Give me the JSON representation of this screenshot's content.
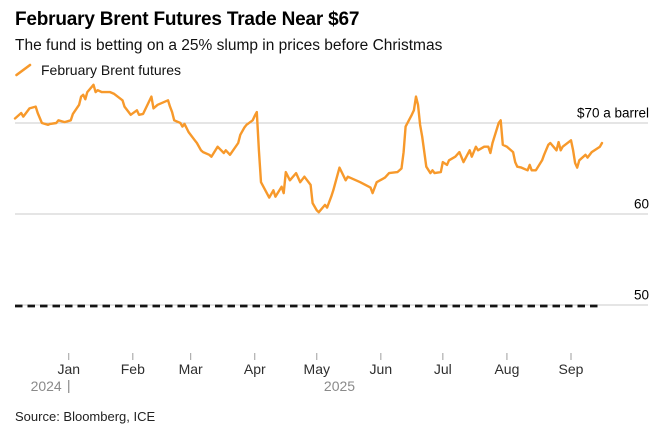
{
  "header": {
    "title": "February Brent Futures Trade Near $67",
    "subtitle": "The fund is betting on a 25% slump in prices before Christmas"
  },
  "legend": {
    "series_label": "February Brent futures"
  },
  "footer": {
    "source": "Source: Bloomberg, ICE"
  },
  "colors": {
    "line": "#F7992B",
    "grid": "#CBCBCB",
    "dashed_target": "#141414",
    "tick": "#9E9E9E",
    "month_label": "#2E2E2E",
    "year_label": "#8A8A8A",
    "axis_label": "#000000"
  },
  "chart_data": {
    "type": "line",
    "title": "February Brent Futures Trade Near $67",
    "subtitle": "The fund is betting on a 25% slump in prices before Christmas",
    "unit": "$ a barrel",
    "grid": "horizontal-only",
    "legend_position": "top-left",
    "x_range": {
      "start": "2024-12-06",
      "end": "2025-09-16"
    },
    "ylim": [
      48,
      76
    ],
    "y_ticks": [
      {
        "value": 70,
        "label": "$70 a barrel"
      },
      {
        "value": 60,
        "label": "60"
      },
      {
        "value": 50,
        "label": "50"
      }
    ],
    "x_ticks": [
      {
        "date": "2025-01-01",
        "label": "Jan"
      },
      {
        "date": "2025-02-01",
        "label": "Feb"
      },
      {
        "date": "2025-03-01",
        "label": "Mar"
      },
      {
        "date": "2025-04-01",
        "label": "Apr"
      },
      {
        "date": "2025-05-01",
        "label": "May"
      },
      {
        "date": "2025-06-01",
        "label": "Jun"
      },
      {
        "date": "2025-07-01",
        "label": "Jul"
      },
      {
        "date": "2025-08-01",
        "label": "Aug"
      },
      {
        "date": "2025-09-01",
        "label": "Sep"
      }
    ],
    "year_labels": [
      {
        "label": "2024",
        "type": "boundary",
        "date": "2025-01-01"
      },
      {
        "label": "2025",
        "type": "center",
        "date": "2025-05-12"
      }
    ],
    "target_line": {
      "value": 50,
      "style": "dashed"
    },
    "series": [
      {
        "name": "February Brent futures",
        "color": "#F7992B",
        "points": [
          [
            "2024-12-06",
            70.5
          ],
          [
            "2024-12-09",
            71.1
          ],
          [
            "2024-12-10",
            70.7
          ],
          [
            "2024-12-13",
            71.6
          ],
          [
            "2024-12-16",
            71.8
          ],
          [
            "2024-12-17",
            71.1
          ],
          [
            "2024-12-19",
            70.0
          ],
          [
            "2024-12-22",
            69.8
          ],
          [
            "2024-12-23",
            69.9
          ],
          [
            "2024-12-26",
            70.0
          ],
          [
            "2024-12-27",
            70.3
          ],
          [
            "2024-12-30",
            70.1
          ],
          [
            "2025-01-02",
            70.3
          ],
          [
            "2025-01-03",
            71.0
          ],
          [
            "2025-01-06",
            72.0
          ],
          [
            "2025-01-07",
            72.9
          ],
          [
            "2025-01-08",
            73.1
          ],
          [
            "2025-01-09",
            72.6
          ],
          [
            "2025-01-10",
            73.4
          ],
          [
            "2025-01-13",
            74.2
          ],
          [
            "2025-01-14",
            73.4
          ],
          [
            "2025-01-15",
            73.6
          ],
          [
            "2025-01-17",
            73.4
          ],
          [
            "2025-01-21",
            73.4
          ],
          [
            "2025-01-23",
            73.2
          ],
          [
            "2025-01-27",
            72.5
          ],
          [
            "2025-01-28",
            71.8
          ],
          [
            "2025-01-30",
            71.2
          ],
          [
            "2025-01-31",
            70.9
          ],
          [
            "2025-02-03",
            71.4
          ],
          [
            "2025-02-04",
            70.9
          ],
          [
            "2025-02-06",
            71.0
          ],
          [
            "2025-02-10",
            72.9
          ],
          [
            "2025-02-11",
            71.6
          ],
          [
            "2025-02-13",
            72.0
          ],
          [
            "2025-02-18",
            72.5
          ],
          [
            "2025-02-19",
            71.8
          ],
          [
            "2025-02-20",
            71.2
          ],
          [
            "2025-02-21",
            70.3
          ],
          [
            "2025-02-24",
            70.0
          ],
          [
            "2025-02-25",
            69.6
          ],
          [
            "2025-02-26",
            69.9
          ],
          [
            "2025-02-28",
            69.0
          ],
          [
            "2025-03-03",
            68.1
          ],
          [
            "2025-03-04",
            67.8
          ],
          [
            "2025-03-06",
            67.0
          ],
          [
            "2025-03-07",
            66.8
          ],
          [
            "2025-03-10",
            66.5
          ],
          [
            "2025-03-11",
            66.3
          ],
          [
            "2025-03-14",
            67.4
          ],
          [
            "2025-03-17",
            66.7
          ],
          [
            "2025-03-18",
            67.0
          ],
          [
            "2025-03-20",
            66.5
          ],
          [
            "2025-03-24",
            67.8
          ],
          [
            "2025-03-25",
            68.7
          ],
          [
            "2025-03-27",
            69.5
          ],
          [
            "2025-03-28",
            69.8
          ],
          [
            "2025-03-31",
            70.3
          ],
          [
            "2025-04-01",
            70.8
          ],
          [
            "2025-04-02",
            71.2
          ],
          [
            "2025-04-03",
            67.0
          ],
          [
            "2025-04-04",
            63.5
          ],
          [
            "2025-04-08",
            61.8
          ],
          [
            "2025-04-10",
            62.6
          ],
          [
            "2025-04-11",
            61.9
          ],
          [
            "2025-04-14",
            63.0
          ],
          [
            "2025-04-15",
            62.3
          ],
          [
            "2025-04-16",
            64.6
          ],
          [
            "2025-04-18",
            63.7
          ],
          [
            "2025-04-21",
            64.5
          ],
          [
            "2025-04-23",
            63.5
          ],
          [
            "2025-04-25",
            64.1
          ],
          [
            "2025-04-28",
            63.2
          ],
          [
            "2025-04-29",
            61.2
          ],
          [
            "2025-05-01",
            60.4
          ],
          [
            "2025-05-02",
            60.2
          ],
          [
            "2025-05-05",
            61.0
          ],
          [
            "2025-05-06",
            60.7
          ],
          [
            "2025-05-08",
            61.9
          ],
          [
            "2025-05-09",
            62.6
          ],
          [
            "2025-05-12",
            65.1
          ],
          [
            "2025-05-15",
            63.7
          ],
          [
            "2025-05-16",
            64.1
          ],
          [
            "2025-05-20",
            63.7
          ],
          [
            "2025-05-22",
            63.5
          ],
          [
            "2025-05-27",
            62.9
          ],
          [
            "2025-05-28",
            62.3
          ],
          [
            "2025-05-30",
            63.5
          ],
          [
            "2025-06-03",
            64.0
          ],
          [
            "2025-06-05",
            64.5
          ],
          [
            "2025-06-09",
            64.6
          ],
          [
            "2025-06-11",
            65.0
          ],
          [
            "2025-06-12",
            66.8
          ],
          [
            "2025-06-13",
            69.6
          ],
          [
            "2025-06-16",
            70.9
          ],
          [
            "2025-06-17",
            71.4
          ],
          [
            "2025-06-18",
            72.9
          ],
          [
            "2025-06-19",
            72.0
          ],
          [
            "2025-06-20",
            69.8
          ],
          [
            "2025-06-21",
            68.5
          ],
          [
            "2025-06-23",
            65.2
          ],
          [
            "2025-06-25",
            64.5
          ],
          [
            "2025-06-26",
            64.8
          ],
          [
            "2025-06-27",
            64.5
          ],
          [
            "2025-06-30",
            64.6
          ],
          [
            "2025-07-01",
            65.7
          ],
          [
            "2025-07-03",
            65.4
          ],
          [
            "2025-07-04",
            65.9
          ],
          [
            "2025-07-07",
            66.3
          ],
          [
            "2025-07-09",
            66.8
          ],
          [
            "2025-07-11",
            65.7
          ],
          [
            "2025-07-14",
            67.0
          ],
          [
            "2025-07-15",
            66.3
          ],
          [
            "2025-07-17",
            67.4
          ],
          [
            "2025-07-18",
            67.0
          ],
          [
            "2025-07-21",
            67.4
          ],
          [
            "2025-07-23",
            67.4
          ],
          [
            "2025-07-24",
            66.7
          ],
          [
            "2025-07-25",
            67.8
          ],
          [
            "2025-07-28",
            70.0
          ],
          [
            "2025-07-29",
            70.3
          ],
          [
            "2025-07-30",
            67.6
          ],
          [
            "2025-08-01",
            67.4
          ],
          [
            "2025-08-04",
            66.8
          ],
          [
            "2025-08-05",
            65.7
          ],
          [
            "2025-08-06",
            65.2
          ],
          [
            "2025-08-08",
            65.1
          ],
          [
            "2025-08-11",
            64.8
          ],
          [
            "2025-08-12",
            65.4
          ],
          [
            "2025-08-13",
            64.8
          ],
          [
            "2025-08-15",
            64.8
          ],
          [
            "2025-08-18",
            65.9
          ],
          [
            "2025-08-19",
            66.5
          ],
          [
            "2025-08-21",
            67.6
          ],
          [
            "2025-08-22",
            67.8
          ],
          [
            "2025-08-25",
            67.0
          ],
          [
            "2025-08-26",
            67.9
          ],
          [
            "2025-08-27",
            67.0
          ],
          [
            "2025-08-28",
            67.4
          ],
          [
            "2025-09-01",
            68.1
          ],
          [
            "2025-09-02",
            67.0
          ],
          [
            "2025-09-03",
            65.6
          ],
          [
            "2025-09-04",
            65.1
          ],
          [
            "2025-09-05",
            65.9
          ],
          [
            "2025-09-08",
            66.5
          ],
          [
            "2025-09-09",
            66.2
          ],
          [
            "2025-09-11",
            66.8
          ],
          [
            "2025-09-15",
            67.4
          ],
          [
            "2025-09-16",
            67.8
          ]
        ]
      }
    ]
  }
}
